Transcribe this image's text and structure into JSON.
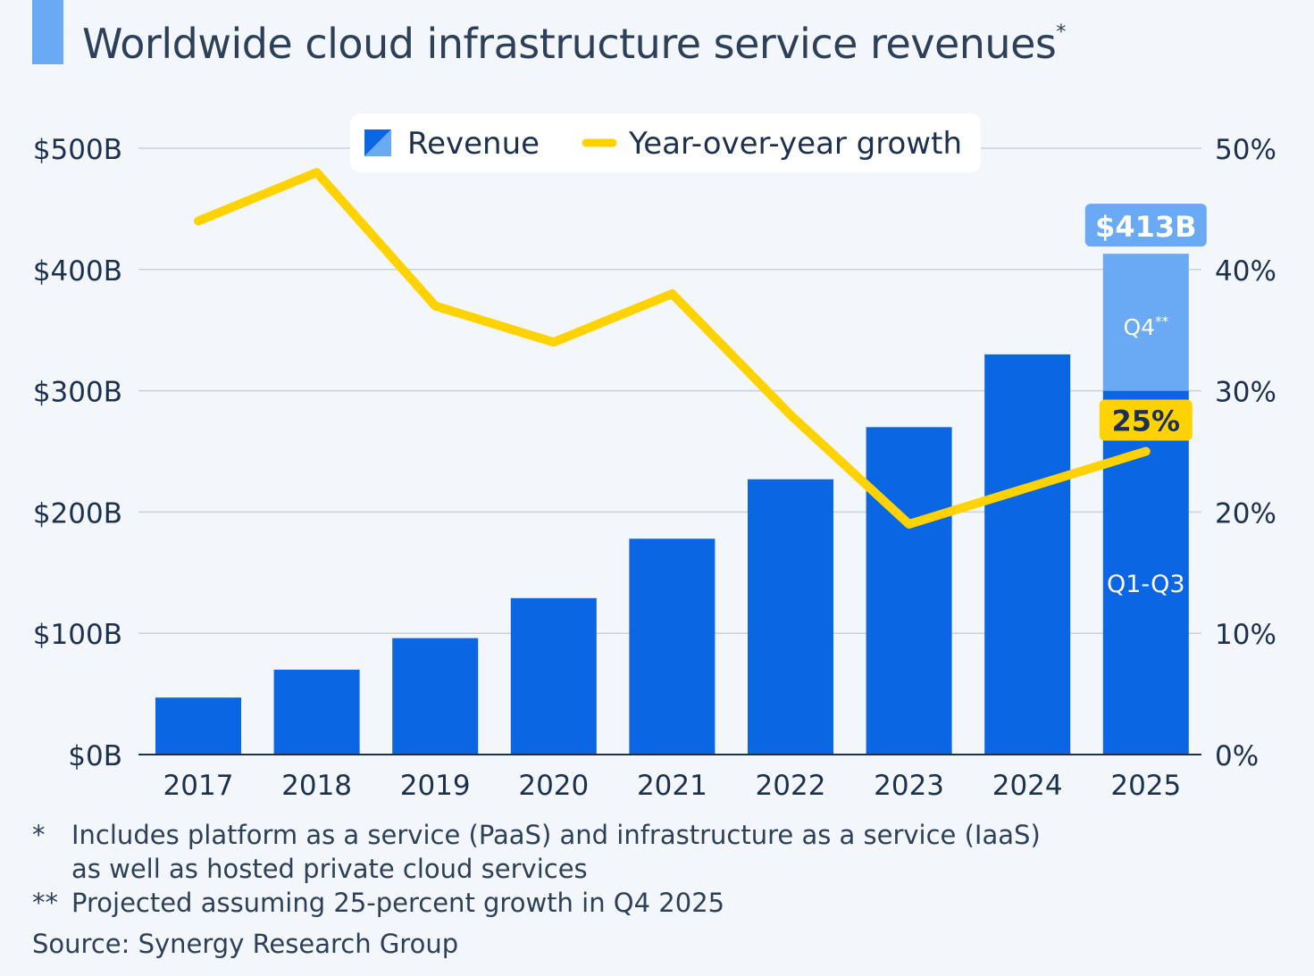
{
  "title": "Worldwide cloud infrastructure service revenues",
  "title_mark": "*",
  "chart_data": {
    "type": "bar",
    "categories": [
      "2017",
      "2018",
      "2019",
      "2020",
      "2021",
      "2022",
      "2023",
      "2024",
      "2025"
    ],
    "series": [
      {
        "name": "Revenue",
        "type": "bar",
        "axis": "left",
        "values": [
          47,
          70,
          96,
          129,
          178,
          227,
          270,
          330,
          413
        ],
        "stack_2025": {
          "q1_q3": 300,
          "q4_projected": 113
        }
      },
      {
        "name": "Year-over-year growth",
        "type": "line",
        "axis": "right",
        "values": [
          44,
          48,
          37,
          34,
          38,
          28,
          19,
          22,
          25
        ]
      }
    ],
    "y_left": {
      "ticks": [
        "$0B",
        "$100B",
        "$200B",
        "$300B",
        "$400B",
        "$500B"
      ],
      "range": [
        0,
        500
      ]
    },
    "y_right": {
      "ticks": [
        "0%",
        "10%",
        "20%",
        "30%",
        "40%",
        "50%"
      ],
      "range": [
        0,
        50
      ]
    },
    "legend": {
      "placement": "top-center",
      "items": [
        "Revenue",
        "Year-over-year growth"
      ]
    },
    "annotations": {
      "total_label": "$413B",
      "growth_label": "25%",
      "q4_label": "Q4",
      "q4_mark": "**",
      "q1q3_label": "Q1-Q3"
    },
    "grid": true,
    "colors": {
      "bar": "#0b66e4",
      "bar_projected": "#6aaaf5",
      "line": "#ffd200",
      "grid": "#c9d1db",
      "text": "#1c3150"
    }
  },
  "footnotes": [
    {
      "mark": "*",
      "lines": [
        "Includes platform as a service (PaaS) and infrastructure as a service (IaaS)",
        "as well as hosted private cloud services"
      ]
    },
    {
      "mark": "**",
      "lines": [
        "Projected assuming 25-percent growth in Q4 2025"
      ]
    }
  ],
  "source": "Source: Synergy Research Group"
}
